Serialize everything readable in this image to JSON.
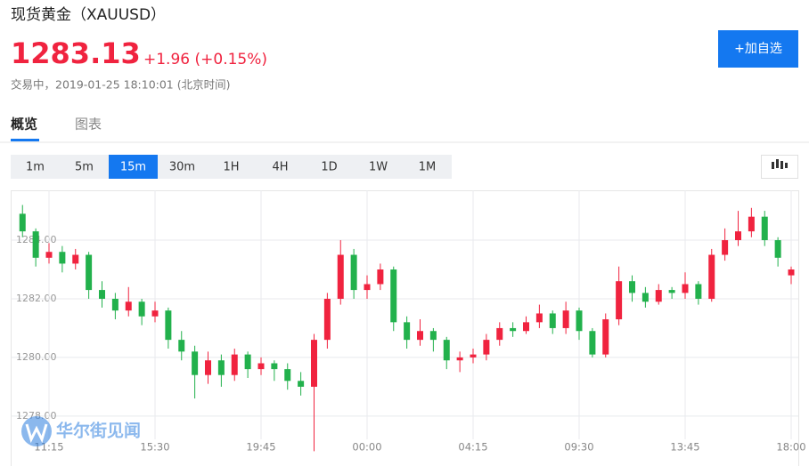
{
  "header": {
    "title": "现货黄金（XAUUSD）",
    "price": "1283.13",
    "change": "+1.96 (+0.15%)",
    "status": "交易中，2019-01-25 18:10:01 (北京时间)",
    "button": "+加自选"
  },
  "tabs": [
    "概览",
    "图表"
  ],
  "periods": [
    "1m",
    "5m",
    "15m",
    "30m",
    "1H",
    "4H",
    "1D",
    "1W",
    "1M"
  ],
  "watermark": "华尔街见闻",
  "chart_data": {
    "type": "candlestick",
    "categories": [
      null,
      null,
      "11:15",
      null,
      null,
      null,
      null,
      null,
      null,
      null,
      "15:30",
      null,
      null,
      null,
      null,
      null,
      null,
      null,
      "19:45",
      null,
      null,
      null,
      null,
      null,
      null,
      null,
      "00:00",
      null,
      null,
      null,
      null,
      null,
      null,
      null,
      "04:15",
      null,
      null,
      null,
      null,
      null,
      null,
      null,
      "09:30",
      null,
      null,
      null,
      null,
      null,
      null,
      null,
      "13:45",
      null,
      null,
      null,
      null,
      null,
      null,
      null,
      "18:00"
    ],
    "open": [
      1284.9,
      1284.3,
      1283.4,
      1283.6,
      1283.2,
      1283.5,
      1282.3,
      1282.0,
      1281.6,
      1281.9,
      1281.4,
      1281.6,
      1280.6,
      1280.2,
      1279.4,
      1279.9,
      1279.4,
      1280.1,
      1279.6,
      1279.8,
      1279.6,
      1279.2,
      1279.0,
      1280.6,
      1282.0,
      1283.5,
      1282.3,
      1282.5,
      1283.0,
      1281.2,
      1280.6,
      1280.9,
      1280.6,
      1279.9,
      1280.0,
      1280.1,
      1280.6,
      1281.0,
      1280.9,
      1281.2,
      1281.5,
      1281.0,
      1281.6,
      1280.9,
      1280.1,
      1281.3,
      1282.6,
      1282.2,
      1281.9,
      1282.3,
      1282.2,
      1282.5,
      1282.0,
      1283.5,
      1284.0,
      1284.3,
      1284.8,
      1284.0,
      1282.8
    ],
    "high": [
      1285.2,
      1284.4,
      1283.9,
      1283.8,
      1283.7,
      1283.6,
      1282.6,
      1282.2,
      1282.4,
      1282.0,
      1281.9,
      1281.7,
      1280.9,
      1280.4,
      1280.2,
      1280.1,
      1280.3,
      1280.2,
      1280.0,
      1279.9,
      1279.8,
      1279.5,
      1280.8,
      1282.2,
      1284.0,
      1283.7,
      1282.8,
      1283.2,
      1283.1,
      1281.4,
      1281.3,
      1281.0,
      1280.7,
      1280.2,
      1280.3,
      1280.8,
      1281.2,
      1281.2,
      1281.4,
      1281.8,
      1281.6,
      1281.9,
      1281.7,
      1281.0,
      1281.5,
      1283.1,
      1282.8,
      1282.4,
      1282.5,
      1282.4,
      1282.9,
      1282.6,
      1283.7,
      1284.4,
      1285.0,
      1285.1,
      1285.0,
      1284.1,
      1283.1
    ],
    "low": [
      1284.1,
      1283.1,
      1283.2,
      1282.9,
      1283.0,
      1282.0,
      1281.7,
      1281.3,
      1281.4,
      1281.1,
      1281.2,
      1280.3,
      1279.9,
      1278.6,
      1279.1,
      1279.0,
      1279.2,
      1279.3,
      1279.4,
      1279.2,
      1278.9,
      1278.7,
      1276.8,
      1280.3,
      1281.8,
      1282.0,
      1282.0,
      1282.3,
      1280.9,
      1280.3,
      1280.4,
      1280.2,
      1279.6,
      1279.5,
      1279.8,
      1279.9,
      1280.4,
      1280.7,
      1280.8,
      1281.0,
      1280.8,
      1280.8,
      1280.6,
      1280.0,
      1280.0,
      1281.1,
      1281.9,
      1281.7,
      1281.8,
      1282.0,
      1282.0,
      1281.8,
      1281.9,
      1283.3,
      1283.8,
      1284.1,
      1283.8,
      1283.1,
      1282.5
    ],
    "close": [
      1284.3,
      1283.4,
      1283.6,
      1283.2,
      1283.5,
      1282.3,
      1282.0,
      1281.6,
      1281.9,
      1281.4,
      1281.6,
      1280.6,
      1280.2,
      1279.4,
      1279.9,
      1279.4,
      1280.1,
      1279.6,
      1279.8,
      1279.6,
      1279.2,
      1279.0,
      1280.6,
      1282.0,
      1283.5,
      1282.3,
      1282.5,
      1283.0,
      1281.2,
      1280.6,
      1280.9,
      1280.6,
      1279.9,
      1280.0,
      1280.1,
      1280.6,
      1281.0,
      1280.9,
      1281.2,
      1281.5,
      1281.0,
      1281.6,
      1280.9,
      1280.1,
      1281.3,
      1282.6,
      1282.2,
      1281.9,
      1282.3,
      1282.2,
      1282.5,
      1282.0,
      1283.5,
      1284.0,
      1284.3,
      1284.8,
      1284.0,
      1283.4,
      1283.0
    ],
    "up_color": "#f0233f",
    "down_color": "#22b14c",
    "ylim": [
      1276.6,
      1285.7
    ],
    "yticks": [
      {
        "value": 1278,
        "label": "1278.00"
      },
      {
        "value": 1280,
        "label": "1280.00"
      },
      {
        "value": 1282,
        "label": "1282.00"
      },
      {
        "value": 1284,
        "label": "1284.00"
      }
    ],
    "grid": true
  }
}
